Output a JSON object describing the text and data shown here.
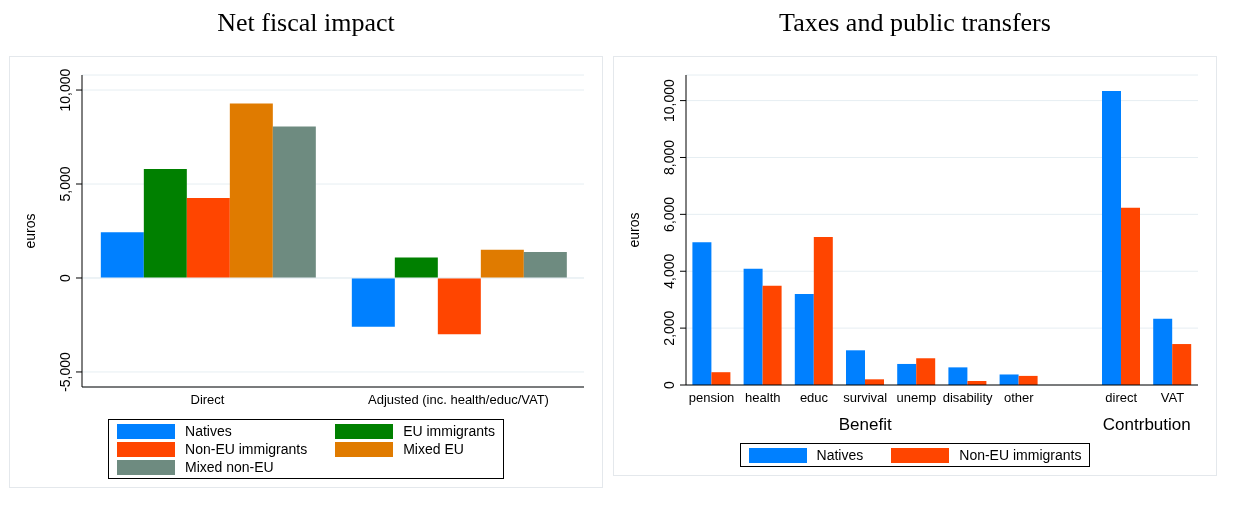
{
  "chart_data": [
    {
      "type": "bar",
      "title": "Net fiscal impact",
      "ylabel": "euros",
      "categories": [
        "Direct",
        "Adjusted (inc. health/educ/VAT)"
      ],
      "series": [
        {
          "name": "Natives",
          "color": "#0080ff",
          "values": [
            2430,
            -2590
          ]
        },
        {
          "name": "EU immigrants",
          "color": "#008000",
          "values": [
            5800,
            1090
          ]
        },
        {
          "name": "Non-EU immigrants",
          "color": "#ff4500",
          "values": [
            4250,
            -3000
          ]
        },
        {
          "name": "Mixed EU",
          "color": "#e07b00",
          "values": [
            9290,
            1500
          ]
        },
        {
          "name": "Mixed non-EU",
          "color": "#6e8b80",
          "values": [
            8060,
            1380
          ]
        }
      ],
      "ylim": [
        -5800,
        10800
      ],
      "yticks": [
        {
          "value": -5000,
          "label": "-5,000"
        },
        0,
        {
          "value": 5000,
          "label": "5,000"
        },
        {
          "value": 10000,
          "label": "10,000"
        }
      ],
      "grid": "y",
      "legend": "bottom"
    },
    {
      "type": "bar",
      "title": "Taxes and public transfers",
      "ylabel": "euros",
      "categories": [
        "pension",
        "health",
        "educ",
        "survival",
        "unemp",
        "disability",
        "other",
        null,
        "direct",
        "VAT"
      ],
      "series": [
        {
          "name": "Natives",
          "color": "#0080ff",
          "values": [
            5020,
            4090,
            3200,
            1220,
            740,
            620,
            370,
            null,
            10340,
            2330
          ]
        },
        {
          "name": "Non-EU immigrants",
          "color": "#ff4500",
          "values": [
            450,
            3490,
            5200,
            200,
            940,
            140,
            320,
            null,
            6230,
            1440
          ]
        }
      ],
      "ylim": [
        0,
        10900
      ],
      "yticks": [
        0,
        {
          "value": 2000,
          "label": "2,000"
        },
        {
          "value": 4000,
          "label": "4,000"
        },
        {
          "value": 6000,
          "label": "6,000"
        },
        {
          "value": 8000,
          "label": "8,000"
        },
        {
          "value": 10000,
          "label": "10,000"
        }
      ],
      "grid": "y",
      "legend": "bottom",
      "annotations": [
        "Benefit",
        "Contrbution"
      ]
    }
  ]
}
